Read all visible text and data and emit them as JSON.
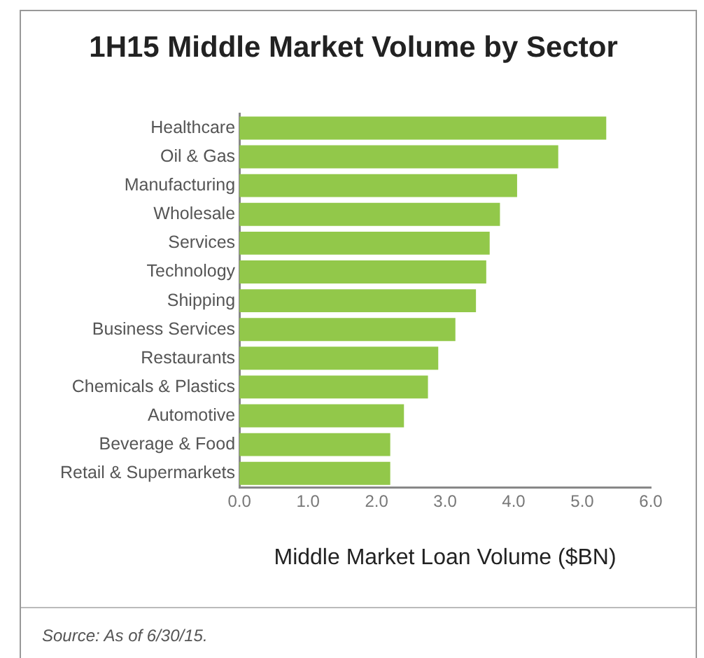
{
  "chart_data": {
    "type": "bar",
    "orientation": "horizontal",
    "title": "1H15 Middle Market Volume by Sector",
    "categories": [
      "Healthcare",
      "Oil & Gas",
      "Manufacturing",
      "Wholesale",
      "Services",
      "Technology",
      "Shipping",
      "Business Services",
      "Restaurants",
      "Chemicals & Plastics",
      "Automotive",
      "Beverage & Food",
      "Retail & Supermarkets"
    ],
    "values": [
      5.35,
      4.65,
      4.05,
      3.8,
      3.65,
      3.6,
      3.45,
      3.15,
      2.9,
      2.75,
      2.4,
      2.2,
      2.2
    ],
    "color": "#92c84a",
    "xlim": [
      0,
      6
    ],
    "xticks": [
      {
        "value": 0,
        "label": "0.0"
      },
      {
        "value": 1,
        "label": "1.0"
      },
      {
        "value": 2,
        "label": "2.0"
      },
      {
        "value": 3,
        "label": "3.0"
      },
      {
        "value": 4,
        "label": "4.0"
      },
      {
        "value": 5,
        "label": "5.0"
      },
      {
        "value": 6,
        "label": "6.0"
      }
    ],
    "xlabel": "Middle Market Loan Volume ($BN)",
    "grid": false,
    "legend": false,
    "annotations": [
      "Source: As of 6/30/15."
    ]
  }
}
